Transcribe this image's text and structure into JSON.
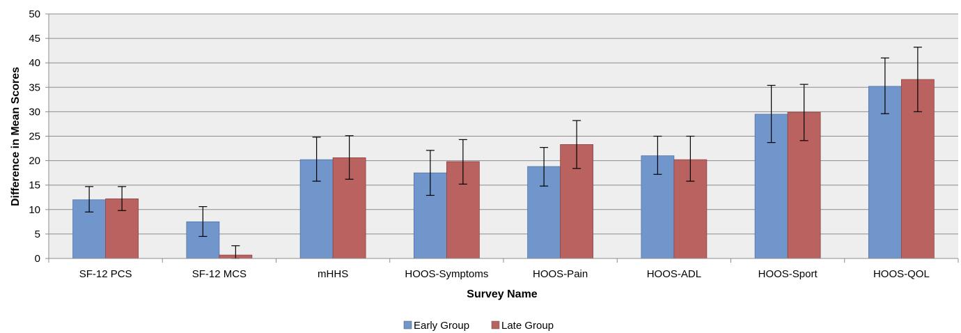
{
  "chart_data": {
    "type": "bar",
    "xlabel": "Survey Name",
    "ylabel": "Difference in Mean Scores",
    "ylim": [
      0,
      50
    ],
    "yticks": [
      "0",
      "5",
      "10",
      "15",
      "20",
      "25",
      "30",
      "35",
      "40",
      "45",
      "50"
    ],
    "grid": true,
    "legend_position": "bottom",
    "categories": [
      "SF-12 PCS",
      "SF-12 MCS",
      "mHHS",
      "HOOS-Symptoms",
      "HOOS-Pain",
      "HOOS-ADL",
      "HOOS-Sport",
      "HOOS-QOL"
    ],
    "series": [
      {
        "name": "Early Group",
        "color": "#7096CC",
        "values": [
          12.0,
          7.5,
          20.2,
          17.5,
          18.8,
          21.0,
          29.5,
          35.2
        ],
        "error_low": [
          9.5,
          4.5,
          15.8,
          12.9,
          14.8,
          17.2,
          23.7,
          29.6
        ],
        "error_high": [
          14.7,
          10.6,
          24.8,
          22.1,
          22.7,
          25.0,
          35.4,
          41.0
        ]
      },
      {
        "name": "Late Group",
        "color": "#B9625F",
        "values": [
          12.2,
          0.7,
          20.6,
          19.8,
          23.3,
          20.2,
          29.9,
          36.6
        ],
        "error_low": [
          9.8,
          0.0,
          16.2,
          15.2,
          18.4,
          15.8,
          24.1,
          30.0
        ],
        "error_high": [
          14.7,
          2.6,
          25.1,
          24.3,
          28.2,
          25.0,
          35.6,
          43.2
        ]
      }
    ]
  }
}
